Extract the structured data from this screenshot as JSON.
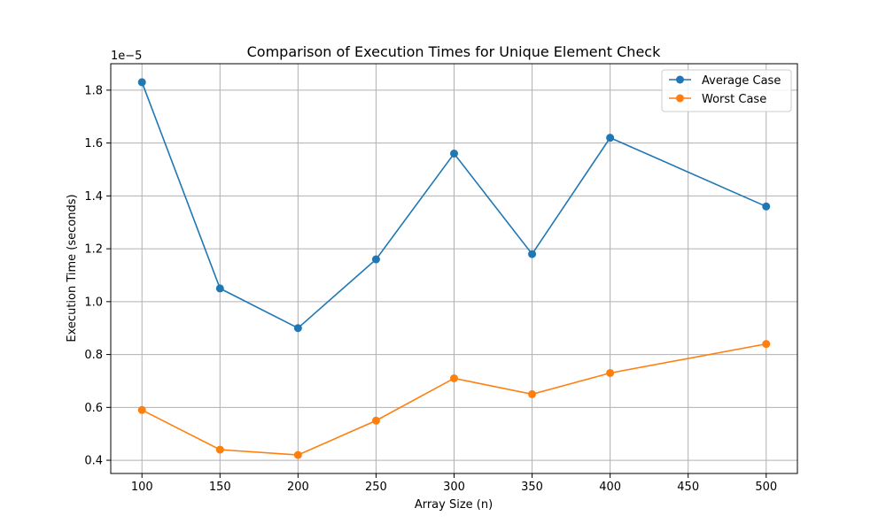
{
  "chart_data": {
    "type": "line",
    "title": "Comparison of Execution Times for Unique Element Check",
    "xlabel": "Array Size (n)",
    "ylabel": "Execution Time (seconds)",
    "y_multiplier": "1e−5",
    "x": [
      100,
      150,
      200,
      250,
      300,
      350,
      400,
      500
    ],
    "xlim": [
      80,
      520
    ],
    "ylim": [
      0.35,
      1.9
    ],
    "x_ticks": [
      100,
      150,
      200,
      250,
      300,
      350,
      400,
      450,
      500
    ],
    "x_tick_labels": [
      "100",
      "150",
      "200",
      "250",
      "300",
      "350",
      "400",
      "450",
      "500"
    ],
    "y_ticks": [
      0.4,
      0.6,
      0.8,
      1.0,
      1.2,
      1.4,
      1.6,
      1.8
    ],
    "y_tick_labels": [
      "0.4",
      "0.6",
      "0.8",
      "1.0",
      "1.2",
      "1.4",
      "1.6",
      "1.8"
    ],
    "grid": true,
    "legend_position": "top-right",
    "series": [
      {
        "name": "Average Case",
        "color": "#1f77b4",
        "marker": "circle",
        "values": [
          1.83,
          1.05,
          0.9,
          1.16,
          1.56,
          1.18,
          1.62,
          1.36
        ]
      },
      {
        "name": "Worst Case",
        "color": "#ff7f0e",
        "marker": "circle",
        "values": [
          0.59,
          0.44,
          0.42,
          0.55,
          0.71,
          0.65,
          0.73,
          0.84
        ]
      }
    ]
  }
}
